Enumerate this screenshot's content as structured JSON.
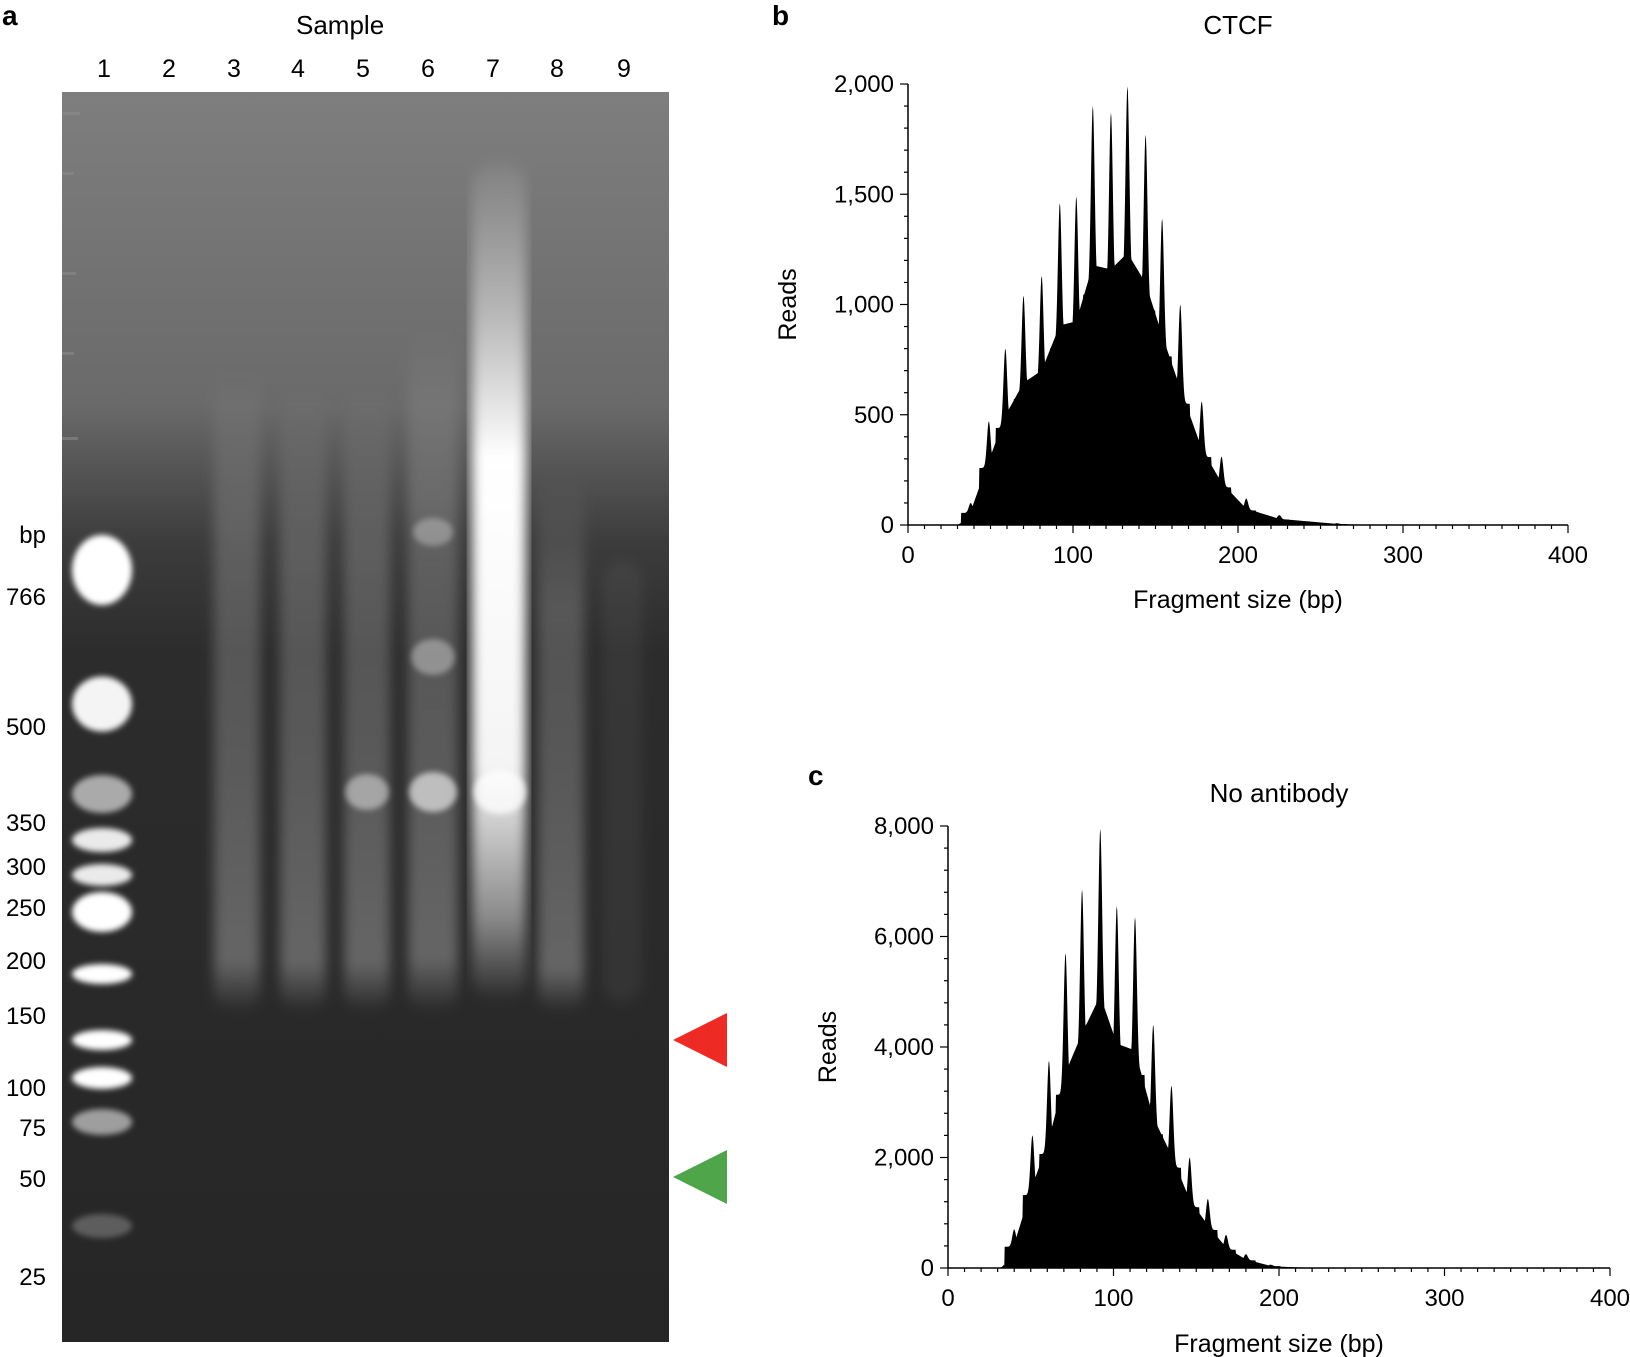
{
  "panel_a": {
    "letter": "a",
    "title": "Sample",
    "lanes": [
      "1",
      "2",
      "3",
      "4",
      "5",
      "6",
      "7",
      "8",
      "9"
    ],
    "bp_unit_label": "bp",
    "ladder_bp": [
      "766",
      "500",
      "350",
      "300",
      "250",
      "200",
      "150",
      "100",
      "75",
      "50",
      "25"
    ],
    "arrows": [
      {
        "name": "red-arrowhead",
        "color": "#ee2a24"
      },
      {
        "name": "green-arrowhead",
        "color": "#4ea54a"
      }
    ]
  },
  "chart_data": [
    {
      "panel": "b",
      "type": "area",
      "title": "CTCF",
      "xlabel": "Fragment size (bp)",
      "ylabel": "Reads",
      "xlim": [
        0,
        400
      ],
      "ylim": [
        0,
        2000
      ],
      "xticks": [
        "0",
        "100",
        "200",
        "300",
        "400"
      ],
      "yticks": [
        "0",
        "500",
        "1,000",
        "1,500",
        "2,000"
      ],
      "color": "#000000",
      "peaks": [
        {
          "x": 38,
          "y": 100
        },
        {
          "x": 49,
          "y": 470
        },
        {
          "x": 59,
          "y": 800
        },
        {
          "x": 70,
          "y": 1040
        },
        {
          "x": 81,
          "y": 1130
        },
        {
          "x": 92,
          "y": 1460
        },
        {
          "x": 102,
          "y": 1490
        },
        {
          "x": 112,
          "y": 1900
        },
        {
          "x": 123,
          "y": 1870
        },
        {
          "x": 133,
          "y": 1990
        },
        {
          "x": 144,
          "y": 1770
        },
        {
          "x": 154,
          "y": 1390
        },
        {
          "x": 165,
          "y": 1000
        },
        {
          "x": 178,
          "y": 560
        },
        {
          "x": 190,
          "y": 310
        },
        {
          "x": 205,
          "y": 120
        },
        {
          "x": 225,
          "y": 45
        },
        {
          "x": 260,
          "y": 8
        }
      ]
    },
    {
      "panel": "c",
      "type": "area",
      "title": "No antibody",
      "xlabel": "Fragment size (bp)",
      "ylabel": "Reads",
      "xlim": [
        0,
        400
      ],
      "ylim": [
        0,
        8000
      ],
      "xticks": [
        "0",
        "100",
        "200",
        "300",
        "400"
      ],
      "yticks": [
        "0",
        "2,000",
        "4,000",
        "6,000",
        "8,000"
      ],
      "color": "#000000",
      "peaks": [
        {
          "x": 40,
          "y": 700
        },
        {
          "x": 51,
          "y": 2400
        },
        {
          "x": 61,
          "y": 3750
        },
        {
          "x": 71,
          "y": 5700
        },
        {
          "x": 81,
          "y": 6850
        },
        {
          "x": 92,
          "y": 7950
        },
        {
          "x": 102,
          "y": 6550
        },
        {
          "x": 113,
          "y": 6350
        },
        {
          "x": 124,
          "y": 4400
        },
        {
          "x": 135,
          "y": 3300
        },
        {
          "x": 146,
          "y": 2000
        },
        {
          "x": 157,
          "y": 1250
        },
        {
          "x": 168,
          "y": 600
        },
        {
          "x": 180,
          "y": 250
        },
        {
          "x": 195,
          "y": 60
        }
      ]
    }
  ]
}
